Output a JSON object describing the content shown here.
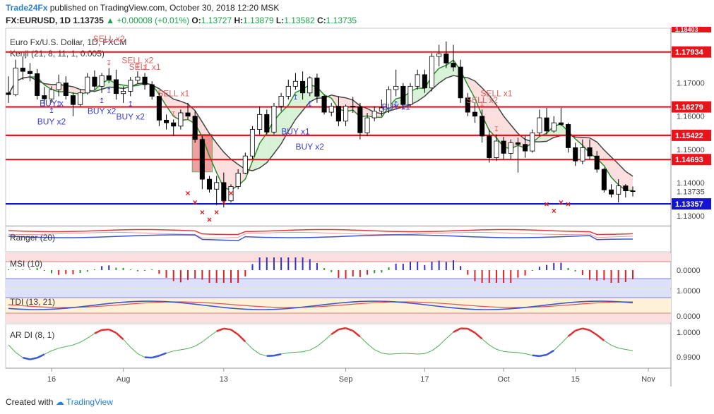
{
  "header": {
    "line1_brand": "Trade24Fx",
    "line1_rest": "published on TradingView.com, October 30, 2018 12:20 MSK",
    "symbol": "FX:EURUSD, 1D",
    "last": "1.13735",
    "change": "+0.00008 (+0.01%)",
    "o_label": "O:",
    "o_value": "1.13727",
    "h_label": "H:",
    "h_value": "1.13879",
    "l_label": "L:",
    "l_value": "1.13582",
    "c_label": "C:",
    "c_value": "1.13735"
  },
  "footer": {
    "created_with": "Created with",
    "brand": "TradingView"
  },
  "colors": {
    "up": "#ffffff",
    "down": "#000000",
    "red_line": "#e8141c",
    "blue_line": "#1414d2",
    "buy": "#3c3cdc",
    "sell": "#e06060",
    "price_tag_bg": "#e8141c",
    "ma_dark": "#444444",
    "cloud_green": "#d7f2d7",
    "cloud_red": "#fbdede",
    "cloud_blue": "#dcdcfa"
  },
  "chart_data": [
    {
      "type": "candlestick",
      "title": "Euro Fx/U.S. Dollar, 1D, FXCM",
      "indicator_label": "Kenji (21, 8, 11, 1, 0.005)",
      "x_ticks": [
        "16",
        "Aug",
        "13",
        "Sep",
        "17",
        "Oct",
        "15",
        "Nov"
      ],
      "y_ticks": [
        "1.17000",
        "1.16000",
        "1.15000",
        "1.14000",
        "1.13000"
      ],
      "y_range": [
        1.127,
        1.1865
      ],
      "current_price": "1.13735",
      "horizontal_levels": [
        {
          "value": 1.17934,
          "label": "1.17934",
          "color": "red"
        },
        {
          "value": 1.16279,
          "label": "1.16279",
          "color": "red"
        },
        {
          "value": 1.15422,
          "label": "1.15422",
          "color": "red"
        },
        {
          "value": 1.14693,
          "label": "1.14693",
          "color": "red"
        },
        {
          "value": 1.13357,
          "label": "1.13357",
          "color": "blue"
        }
      ],
      "top_partial_label": "1.18403",
      "candles": [
        [
          1.167,
          1.172,
          1.164,
          1.1665
        ],
        [
          1.1665,
          1.177,
          1.166,
          1.1745
        ],
        [
          1.1745,
          1.178,
          1.171,
          1.1735
        ],
        [
          1.1735,
          1.176,
          1.1705,
          1.1728
        ],
        [
          1.1728,
          1.1742,
          1.165,
          1.1662
        ],
        [
          1.1662,
          1.1688,
          1.163,
          1.1652
        ],
        [
          1.1652,
          1.169,
          1.164,
          1.168
        ],
        [
          1.168,
          1.1725,
          1.166,
          1.17
        ],
        [
          1.17,
          1.172,
          1.165,
          1.1662
        ],
        [
          1.1662,
          1.1672,
          1.16,
          1.1635
        ],
        [
          1.1635,
          1.168,
          1.163,
          1.167
        ],
        [
          1.167,
          1.173,
          1.1665,
          1.1718
        ],
        [
          1.1718,
          1.1738,
          1.168,
          1.169
        ],
        [
          1.169,
          1.173,
          1.167,
          1.1722
        ],
        [
          1.1722,
          1.1745,
          1.17,
          1.171
        ],
        [
          1.171,
          1.174,
          1.165,
          1.1668
        ],
        [
          1.1668,
          1.169,
          1.164,
          1.1675
        ],
        [
          1.1675,
          1.1718,
          1.166,
          1.1708
        ],
        [
          1.1708,
          1.1735,
          1.1698,
          1.1718
        ],
        [
          1.1718,
          1.173,
          1.168,
          1.1695
        ],
        [
          1.1695,
          1.1705,
          1.165,
          1.166
        ],
        [
          1.166,
          1.167,
          1.157,
          1.1588
        ],
        [
          1.1588,
          1.1605,
          1.156,
          1.158
        ],
        [
          1.158,
          1.159,
          1.154,
          1.157
        ],
        [
          1.157,
          1.162,
          1.156,
          1.161
        ],
        [
          1.161,
          1.164,
          1.159,
          1.16
        ],
        [
          1.16,
          1.1615,
          1.152,
          1.153
        ],
        [
          1.153,
          1.154,
          1.138,
          1.141
        ],
        [
          1.141,
          1.142,
          1.137,
          1.138
        ],
        [
          1.138,
          1.142,
          1.1332,
          1.14
        ],
        [
          1.14,
          1.143,
          1.1325,
          1.1345
        ],
        [
          1.1345,
          1.1395,
          1.134,
          1.1388
        ],
        [
          1.1388,
          1.144,
          1.138,
          1.1428
        ],
        [
          1.1428,
          1.149,
          1.1425,
          1.148
        ],
        [
          1.148,
          1.157,
          1.147,
          1.156
        ],
        [
          1.156,
          1.163,
          1.1545,
          1.1605
        ],
        [
          1.1605,
          1.162,
          1.1545,
          1.1552
        ],
        [
          1.1552,
          1.164,
          1.1545,
          1.163
        ],
        [
          1.163,
          1.167,
          1.1615,
          1.166
        ],
        [
          1.166,
          1.171,
          1.165,
          1.169
        ],
        [
          1.169,
          1.173,
          1.168,
          1.1705
        ],
        [
          1.1705,
          1.1735,
          1.165,
          1.167
        ],
        [
          1.167,
          1.172,
          1.166,
          1.1715
        ],
        [
          1.1715,
          1.1728,
          1.164,
          1.166
        ],
        [
          1.166,
          1.1665,
          1.1605,
          1.1612
        ],
        [
          1.1612,
          1.164,
          1.16,
          1.163
        ],
        [
          1.163,
          1.166,
          1.157,
          1.1585
        ],
        [
          1.1585,
          1.1635,
          1.157,
          1.163
        ],
        [
          1.163,
          1.1658,
          1.161,
          1.1628
        ],
        [
          1.1628,
          1.164,
          1.153,
          1.155
        ],
        [
          1.155,
          1.161,
          1.154,
          1.1595
        ],
        [
          1.1595,
          1.163,
          1.1585,
          1.1615
        ],
        [
          1.1615,
          1.165,
          1.16,
          1.1625
        ],
        [
          1.1625,
          1.169,
          1.161,
          1.168
        ],
        [
          1.168,
          1.174,
          1.166,
          1.169
        ],
        [
          1.169,
          1.17,
          1.162,
          1.1635
        ],
        [
          1.1635,
          1.17,
          1.163,
          1.169
        ],
        [
          1.169,
          1.174,
          1.168,
          1.1725
        ],
        [
          1.1725,
          1.174,
          1.167,
          1.1685
        ],
        [
          1.1685,
          1.179,
          1.1675,
          1.178
        ],
        [
          1.178,
          1.1815,
          1.175,
          1.1788
        ],
        [
          1.1788,
          1.1825,
          1.1745,
          1.176
        ],
        [
          1.176,
          1.1815,
          1.1735,
          1.1748
        ],
        [
          1.1748,
          1.177,
          1.164,
          1.1655
        ],
        [
          1.1655,
          1.167,
          1.16,
          1.1612
        ],
        [
          1.1612,
          1.164,
          1.158,
          1.16
        ],
        [
          1.16,
          1.162,
          1.152,
          1.154
        ],
        [
          1.154,
          1.156,
          1.146,
          1.1475
        ],
        [
          1.1475,
          1.1545,
          1.1465,
          1.1525
        ],
        [
          1.1525,
          1.1538,
          1.147,
          1.1488
        ],
        [
          1.1488,
          1.153,
          1.147,
          1.152
        ],
        [
          1.152,
          1.1535,
          1.143,
          1.1515
        ],
        [
          1.1515,
          1.154,
          1.1475,
          1.1495
        ],
        [
          1.1495,
          1.156,
          1.149,
          1.155
        ],
        [
          1.155,
          1.162,
          1.154,
          1.1595
        ],
        [
          1.1595,
          1.1625,
          1.1545,
          1.1555
        ],
        [
          1.1555,
          1.16,
          1.155,
          1.158
        ],
        [
          1.158,
          1.1625,
          1.157,
          1.1575
        ],
        [
          1.1575,
          1.158,
          1.149,
          1.1505
        ],
        [
          1.1505,
          1.152,
          1.145,
          1.1465
        ],
        [
          1.1465,
          1.153,
          1.1455,
          1.1505
        ],
        [
          1.1505,
          1.153,
          1.147,
          1.148
        ],
        [
          1.148,
          1.1495,
          1.143,
          1.144
        ],
        [
          1.144,
          1.1445,
          1.137,
          1.1378
        ],
        [
          1.1378,
          1.1395,
          1.1355,
          1.1365
        ],
        [
          1.1365,
          1.141,
          1.134,
          1.139
        ],
        [
          1.139,
          1.1395,
          1.1355,
          1.1375
        ],
        [
          1.1375,
          1.1388,
          1.1358,
          1.1374
        ]
      ],
      "signal_labels": [
        {
          "text": "SELL x2",
          "bar": 14,
          "y": 1.1825,
          "color": "sell"
        },
        {
          "text": "SELL x2",
          "bar": 18,
          "y": 1.176,
          "color": "sell"
        },
        {
          "text": "SELL x1",
          "bar": 19,
          "y": 1.174,
          "color": "sell"
        },
        {
          "text": "SELL x1",
          "bar": 23,
          "y": 1.166,
          "color": "sell"
        },
        {
          "text": "SELL x2",
          "bar": 66,
          "y": 1.164,
          "color": "sell"
        },
        {
          "text": "SELL x1",
          "bar": 68,
          "y": 1.166,
          "color": "sell"
        },
        {
          "text": "BUY x",
          "bar": 6,
          "y": 1.163,
          "color": "buy"
        },
        {
          "text": "BUY x2",
          "bar": 6,
          "y": 1.1575,
          "color": "buy"
        },
        {
          "text": "BUY x2",
          "bar": 13,
          "y": 1.1607,
          "color": "buy"
        },
        {
          "text": "BUY x2",
          "bar": 17,
          "y": 1.159,
          "color": "buy"
        },
        {
          "text": "BUY x1",
          "bar": 40,
          "y": 1.1545,
          "color": "buy"
        },
        {
          "text": "BUY x2",
          "bar": 42,
          "y": 1.15,
          "color": "buy"
        },
        {
          "text": "BUY x1",
          "bar": 54,
          "y": 1.162,
          "color": "buy"
        }
      ],
      "buy_arrow_bars": [
        6,
        7,
        13,
        14,
        17,
        40,
        42,
        54
      ],
      "sell_arrow_bars": [
        14,
        18,
        19,
        23,
        66,
        68
      ],
      "cross_markers": [
        {
          "bar": 25,
          "y": 1.1368
        },
        {
          "bar": 26,
          "y": 1.134
        },
        {
          "bar": 27,
          "y": 1.131
        },
        {
          "bar": 28,
          "y": 1.1288
        },
        {
          "bar": 29,
          "y": 1.131
        },
        {
          "bar": 30,
          "y": 1.134
        },
        {
          "bar": 31,
          "y": 1.1368
        },
        {
          "bar": 75,
          "y": 1.1335
        },
        {
          "bar": 76,
          "y": 1.1315
        },
        {
          "bar": 77,
          "y": 1.134
        },
        {
          "bar": 78,
          "y": 1.1335
        }
      ]
    },
    {
      "type": "line",
      "title": "Ranger (20)"
    },
    {
      "type": "bar",
      "title": "MSI (10)",
      "y_ticks": [
        "0.0000"
      ]
    },
    {
      "type": "line",
      "title": "TDI (13, 21)",
      "y_ticks": [
        "1.0000",
        "0.0000"
      ]
    },
    {
      "type": "line",
      "title": "AR DI (8, 1)",
      "y_ticks": [
        "1.0000",
        "0.9900"
      ]
    }
  ]
}
